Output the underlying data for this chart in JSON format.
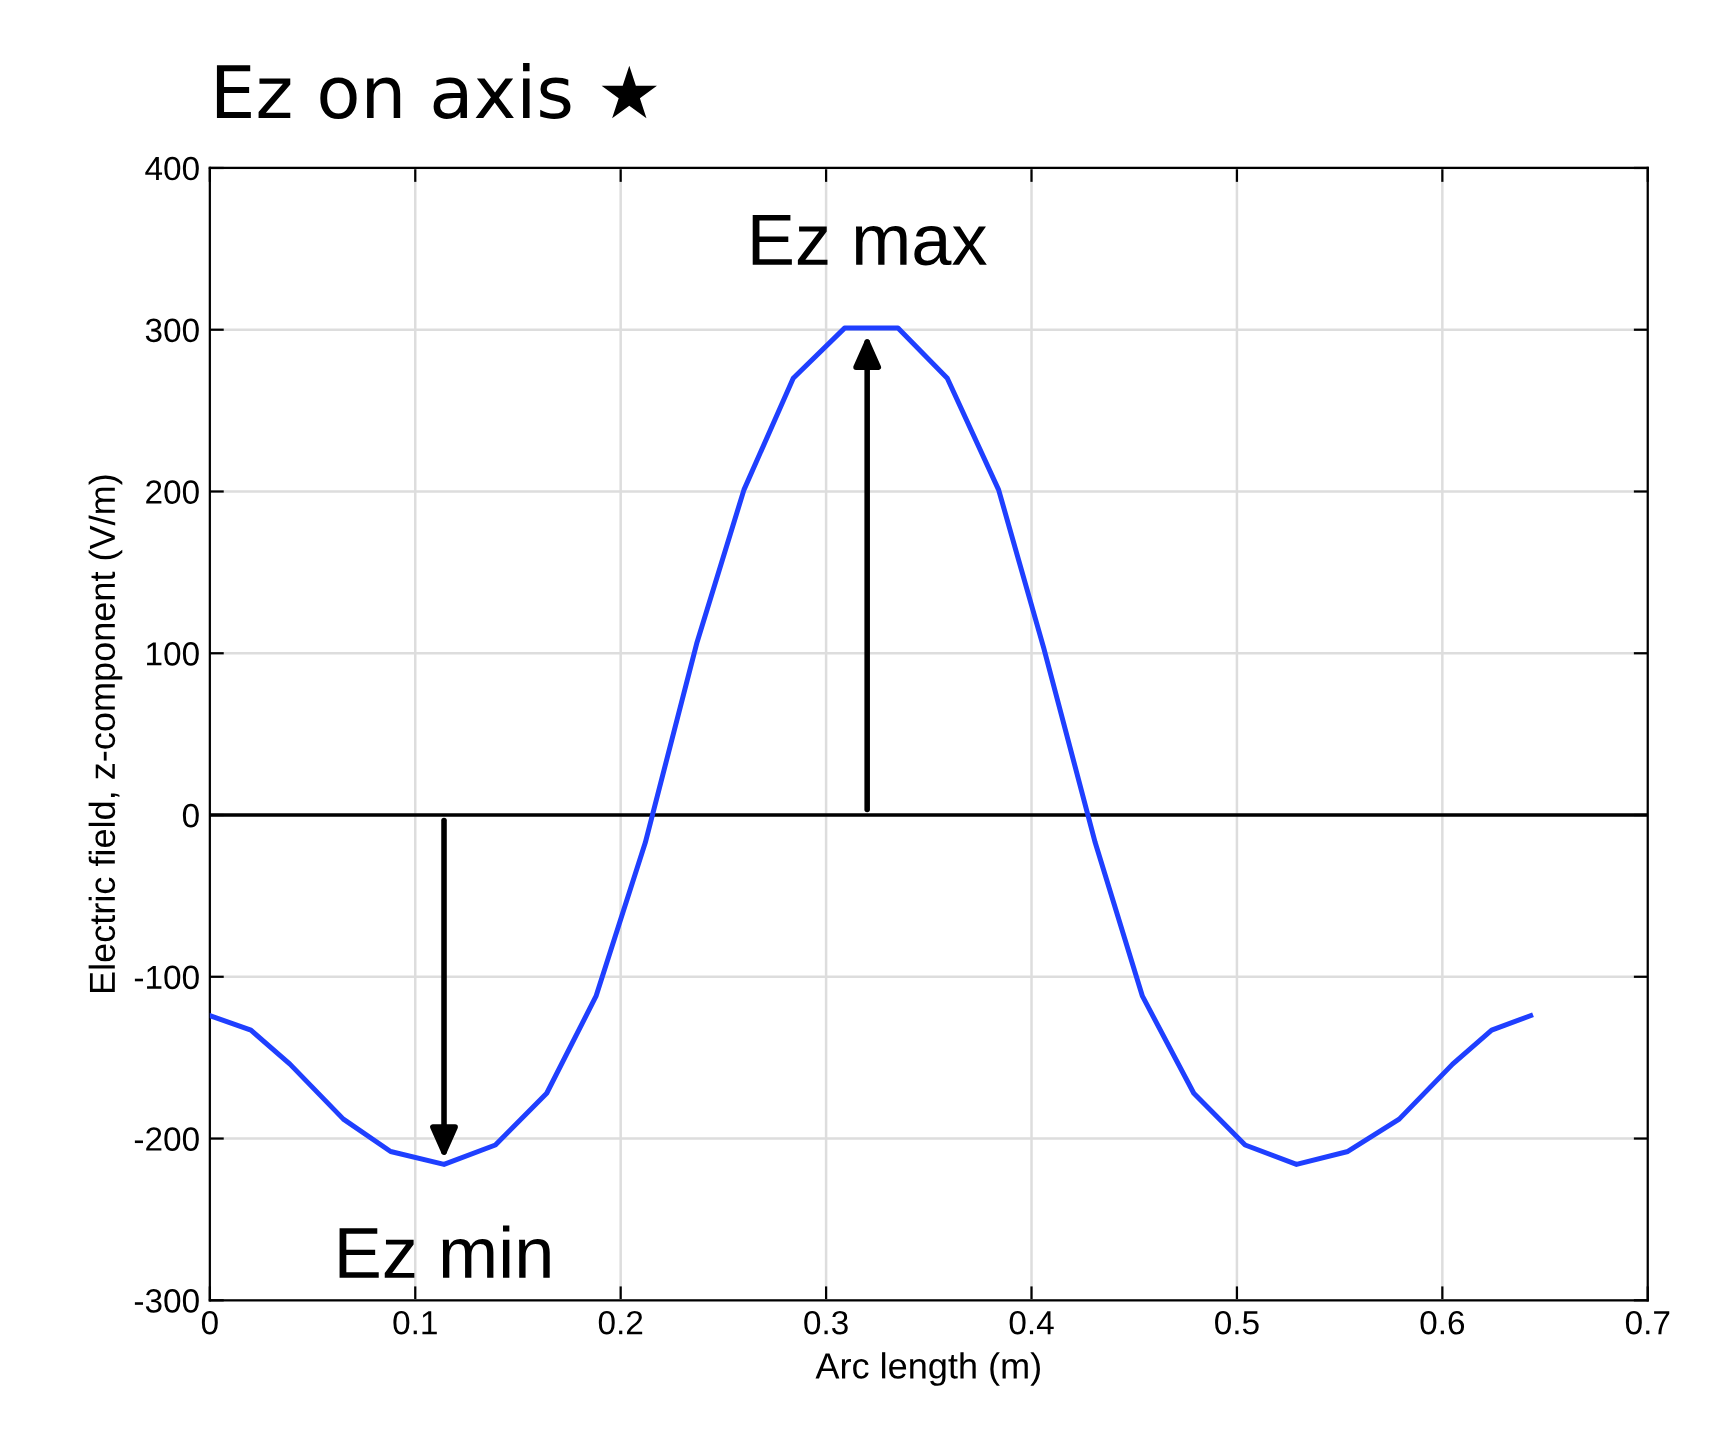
{
  "chart_data": {
    "type": "line",
    "title": "Ez on axis ★",
    "xlabel": "Arc length (m)",
    "ylabel": "Electric field, z-component (V/m)",
    "x": [
      0,
      0.02,
      0.039,
      0.065,
      0.088,
      0.114,
      0.139,
      0.164,
      0.188,
      0.212,
      0.237,
      0.26,
      0.284,
      0.309,
      0.335,
      0.359,
      0.384,
      0.406,
      0.431,
      0.454,
      0.479,
      0.504,
      0.529,
      0.554,
      0.579,
      0.605,
      0.624,
      0.643
    ],
    "series": [
      {
        "color": "#1f3fff",
        "values": [
          -124,
          -133,
          -154,
          -188,
          -208,
          -216,
          -204,
          -172,
          -112,
          -17,
          106,
          201,
          270,
          301,
          301,
          270,
          201,
          103,
          -17,
          -112,
          -172,
          -204,
          -216,
          -208,
          -188,
          -154,
          -133,
          -124
        ]
      }
    ],
    "xlim": [
      0,
      0.7
    ],
    "ylim": [
      -300,
      400
    ],
    "xticks": [
      0,
      0.1,
      0.2,
      0.3,
      0.4,
      0.5,
      0.6,
      0.7
    ],
    "yticks": [
      -300,
      -200,
      -100,
      0,
      100,
      200,
      300,
      400
    ],
    "grid": true,
    "ref_lines": [
      {
        "axis": "y",
        "value": 0,
        "color": "#000000"
      }
    ],
    "annotations": [
      {
        "text": "Ez max",
        "x": 0.32,
        "y": 300
      },
      {
        "text": "Ez min",
        "x": 0.114,
        "y": -216
      }
    ]
  }
}
